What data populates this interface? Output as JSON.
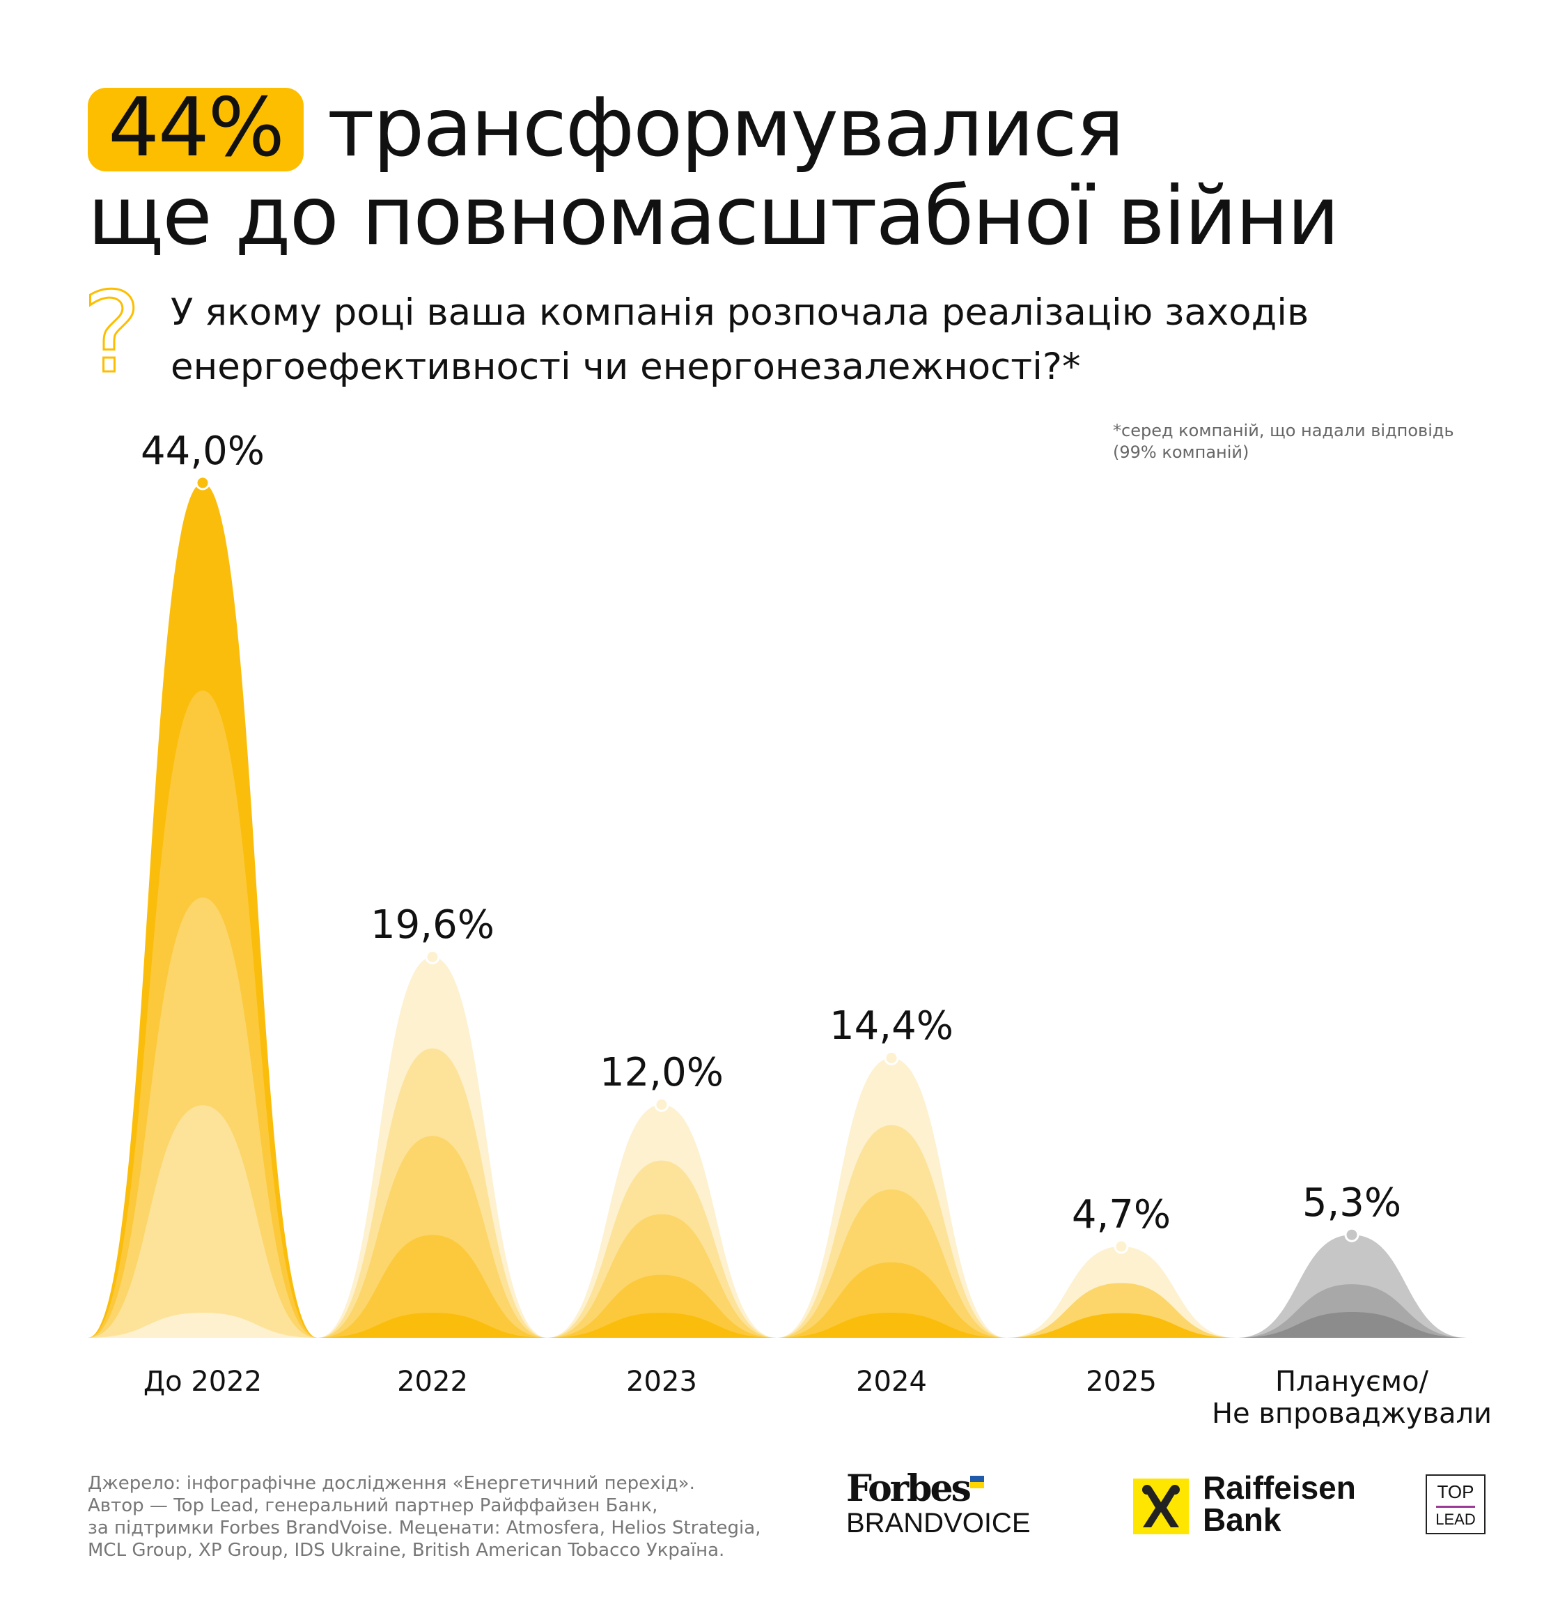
{
  "header": {
    "highlight": "44%",
    "title_line1": "трансформувалися",
    "title_line2": "ще до повномасштабної війни",
    "question_icon": "question-mark-icon",
    "question": "У якому році ваша компанія розпочала реалізацію заходів енергоефективності чи енергонезалежності?*",
    "footnote_line1": "*серед компаній, що надали відповідь",
    "footnote_line2": "(99% компаній)"
  },
  "chart_data": {
    "type": "area",
    "categories": [
      "До 2022",
      "2022",
      "2023",
      "2024",
      "2025",
      "Плануємо/ Не впроваджували"
    ],
    "category_lines": [
      [
        "До 2022"
      ],
      [
        "2022"
      ],
      [
        "2023"
      ],
      [
        "2024"
      ],
      [
        "2025"
      ],
      [
        "Плануємо/",
        "Не впроваджували"
      ]
    ],
    "values": [
      44.0,
      19.6,
      12.0,
      14.4,
      4.7,
      5.3
    ],
    "labels": [
      "44,0%",
      "19,6%",
      "12,0%",
      "14,4%",
      "4,7%",
      "5,3%"
    ],
    "unit": "%",
    "ylim": [
      0,
      44
    ],
    "grid": false,
    "colors": {
      "highlight": "#FBBD0C",
      "yellow_shades": [
        "#FBBD0C",
        "#FCC93C",
        "#FCD66A",
        "#FDE39A",
        "#FDF1CF"
      ],
      "grey_shades": [
        "#C6C6C6",
        "#A8A8A8",
        "#8C8C8C"
      ]
    }
  },
  "footer": {
    "source_lines": [
      "Джерело: інфографічне дослідження «Енергетичний перехід».",
      "Автор — Top Lead, генеральний партнер Райффайзен Банк,",
      "за підтримки Forbes BrandVoise. Меценати: Atmosfera, Helios Strategia,",
      "MCL Group, XP Group, IDS Ukraine, British American Tobacco Україна."
    ],
    "logos": {
      "forbes": "Forbes",
      "brandvoice": "BRANDVOICE",
      "raiffeisen_line1": "Raiffeisen",
      "raiffeisen_line2": "Bank",
      "toplead_line1": "TOP",
      "toplead_line2": "LEAD"
    }
  }
}
